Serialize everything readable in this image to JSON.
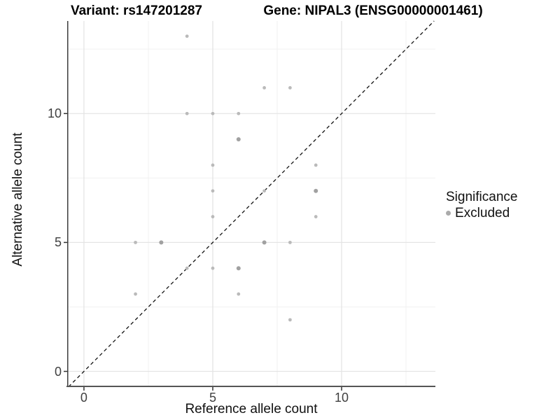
{
  "titles": {
    "variant": "Variant: rs147201287",
    "gene": "Gene: NIPAL3 (ENSG00000001461)"
  },
  "chart_data": {
    "type": "scatter",
    "title": "Variant: rs147201287 — Gene: NIPAL3 (ENSG00000001461)",
    "xlabel": "Reference allele count",
    "ylabel": "Alternative allele count",
    "xlim": [
      -0.65,
      13.64
    ],
    "ylim": [
      -0.61,
      13.59
    ],
    "xticks": [
      0,
      5,
      10
    ],
    "yticks": [
      0,
      5,
      10
    ],
    "minor_x": [
      2.5,
      7.5,
      12.5
    ],
    "minor_y": [
      2.5,
      7.5,
      12.5
    ],
    "grid": true,
    "identity_line": {
      "style": "dashed",
      "from": -0.6,
      "to": 13.59,
      "color": "#141414"
    },
    "legend": {
      "title": "Significance",
      "position": "right",
      "items": [
        {
          "label": "Excluded",
          "color": "#ababab"
        }
      ]
    },
    "points": [
      {
        "x": 2,
        "y": 3,
        "size": 1
      },
      {
        "x": 2,
        "y": 5,
        "size": 1
      },
      {
        "x": 3,
        "y": 5,
        "size": 2
      },
      {
        "x": 4,
        "y": 4,
        "size": 1
      },
      {
        "x": 4,
        "y": 10,
        "size": 1
      },
      {
        "x": 4,
        "y": 13,
        "size": 1
      },
      {
        "x": 5,
        "y": 4,
        "size": 1
      },
      {
        "x": 5,
        "y": 6,
        "size": 1
      },
      {
        "x": 5,
        "y": 7,
        "size": 1
      },
      {
        "x": 5,
        "y": 8,
        "size": 1
      },
      {
        "x": 5,
        "y": 10,
        "size": 1
      },
      {
        "x": 6,
        "y": 3,
        "size": 1
      },
      {
        "x": 6,
        "y": 4,
        "size": 2
      },
      {
        "x": 6,
        "y": 9,
        "size": 2
      },
      {
        "x": 6,
        "y": 10,
        "size": 1
      },
      {
        "x": 7,
        "y": 5,
        "size": 2
      },
      {
        "x": 7,
        "y": 7,
        "size": 1
      },
      {
        "x": 7,
        "y": 11,
        "size": 1
      },
      {
        "x": 8,
        "y": 2,
        "size": 1
      },
      {
        "x": 8,
        "y": 5,
        "size": 1
      },
      {
        "x": 8,
        "y": 11,
        "size": 1
      },
      {
        "x": 9,
        "y": 6,
        "size": 1
      },
      {
        "x": 9,
        "y": 7,
        "size": 2
      },
      {
        "x": 9,
        "y": 8,
        "size": 1
      }
    ],
    "point_colors": {
      "normal": "#bababa",
      "emphasized": "#a1a1a1"
    },
    "grid_colors": {
      "major": "#e4e4e4",
      "minor": "#f1f1f1"
    },
    "axis_line_color": "#4a4a4a"
  }
}
